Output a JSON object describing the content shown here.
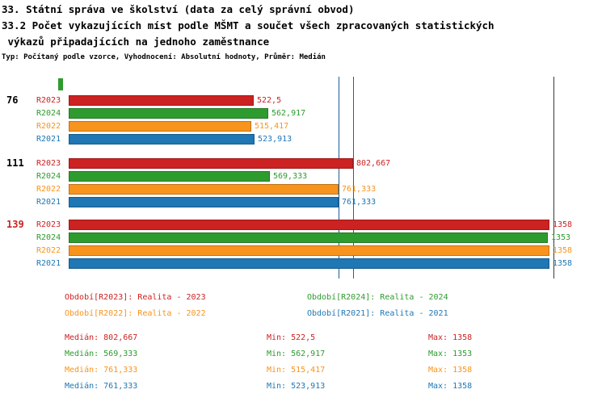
{
  "title": {
    "line1": "33. Státní správa ve školství (data za celý správní obvod)",
    "line2": "33.2 Počet vykazujících míst podle MŠMT a součet všech zpracovaných statistických",
    "line3": " výkazů připadajících na jednoho zaměstnance",
    "subtitle": "Typ: Počítaný podle vzorce, Vyhodnocení: Absolutní hodnoty, Průměr: Medián"
  },
  "chart_data": {
    "type": "bar",
    "orientation": "horizontal",
    "xlim": [
      0,
      1400
    ],
    "grid": false,
    "series_colors": {
      "R2023": "#cc2222",
      "R2024": "#2e9b2e",
      "R2022": "#f7941d",
      "R2021": "#1f77b4"
    },
    "groups": [
      {
        "label": "76",
        "label_color": "#000000",
        "bars": [
          {
            "series": "R2023",
            "value": 522.5,
            "display": "522,5"
          },
          {
            "series": "R2024",
            "value": 562.917,
            "display": "562,917"
          },
          {
            "series": "R2022",
            "value": 515.417,
            "display": "515,417"
          },
          {
            "series": "R2021",
            "value": 523.913,
            "display": "523,913"
          }
        ]
      },
      {
        "label": "111",
        "label_color": "#000000",
        "bars": [
          {
            "series": "R2023",
            "value": 802.667,
            "display": "802,667"
          },
          {
            "series": "R2024",
            "value": 569.333,
            "display": "569,333"
          },
          {
            "series": "R2022",
            "value": 761.333,
            "display": "761,333"
          },
          {
            "series": "R2021",
            "value": 761.333,
            "display": "761,333"
          }
        ]
      },
      {
        "label": "139",
        "label_color": "#cc2222",
        "bars": [
          {
            "series": "R2023",
            "value": 1358,
            "display": "1358"
          },
          {
            "series": "R2024",
            "value": 1353,
            "display": "1353"
          },
          {
            "series": "R2022",
            "value": 1358,
            "display": "1358"
          },
          {
            "series": "R2021",
            "value": 1358,
            "display": "1358"
          }
        ]
      }
    ],
    "median_markers": [
      {
        "series": "R2021",
        "value": 761.333,
        "color": "#1a5f98"
      },
      {
        "series": "R2023",
        "value": 802.667,
        "color": "#cc2222"
      }
    ],
    "legend": [
      {
        "series": "R2023",
        "text": "Období[R2023]: Realita - 2023",
        "color": "#cc2222"
      },
      {
        "series": "R2024",
        "text": "Období[R2024]: Realita - 2024",
        "color": "#2e9b2e"
      },
      {
        "series": "R2022",
        "text": "Období[R2022]: Realita - 2022",
        "color": "#f7941d"
      },
      {
        "series": "R2021",
        "text": "Období[R2021]: Realita - 2021",
        "color": "#1f77b4"
      }
    ],
    "stat_labels": {
      "median": "Medián",
      "min": "Min",
      "max": "Max"
    },
    "stats": [
      {
        "series": "R2023",
        "median": "802,667",
        "min": "522,5",
        "max": "1358",
        "color": "#cc2222"
      },
      {
        "series": "R2024",
        "median": "569,333",
        "min": "562,917",
        "max": "1353",
        "color": "#2e9b2e"
      },
      {
        "series": "R2022",
        "median": "761,333",
        "min": "515,417",
        "max": "1358",
        "color": "#f7941d"
      },
      {
        "series": "R2021",
        "median": "761,333",
        "min": "523,913",
        "max": "1358",
        "color": "#1f77b4"
      }
    ]
  }
}
